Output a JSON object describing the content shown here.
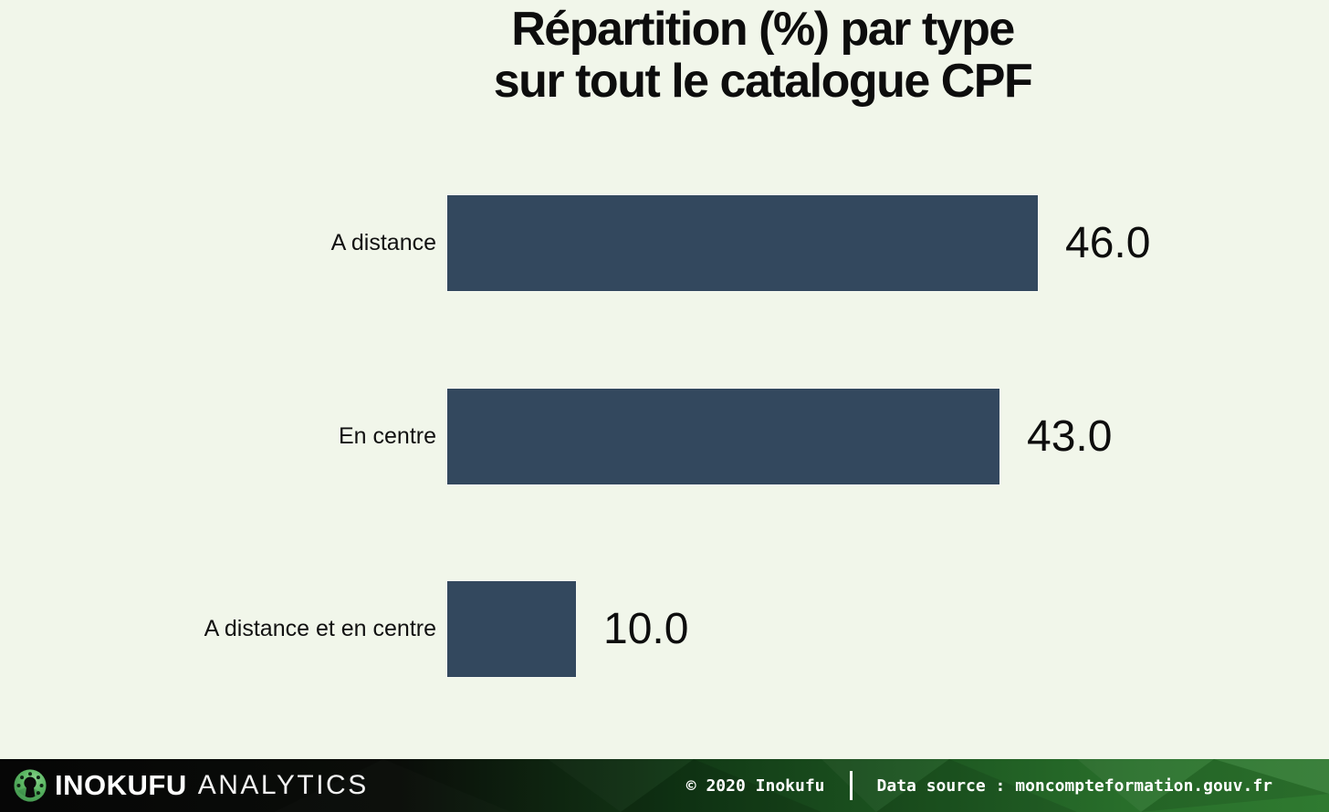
{
  "page": {
    "background": "#f1f6ea"
  },
  "title": {
    "line1": "Répartition (%) par type",
    "line2": "sur tout le catalogue CPF"
  },
  "chart_data": {
    "type": "bar",
    "orientation": "horizontal",
    "title": "Répartition (%) par type sur tout le catalogue CPF",
    "categories": [
      "A distance",
      "En centre",
      "A distance et en centre"
    ],
    "values": [
      46.0,
      43.0,
      10.0
    ],
    "value_labels": [
      "46.0",
      "43.0",
      "10.0"
    ],
    "xlabel": "",
    "ylabel": "",
    "xlim": [
      0,
      46
    ],
    "grid": false,
    "legend": false,
    "bar_color": "#33485e",
    "background_color": "#f1f6ea",
    "text_color": "#0d0d0d"
  },
  "footer": {
    "brand": {
      "name": "INOKUFU",
      "suffix": "ANALYTICS",
      "logo_icon": "inokufu-lightbulb-logo",
      "logo_green": "#57b45e"
    },
    "copyright": "© 2020 Inokufu",
    "data_source": "Data source : moncompteformation.gouv.fr"
  }
}
